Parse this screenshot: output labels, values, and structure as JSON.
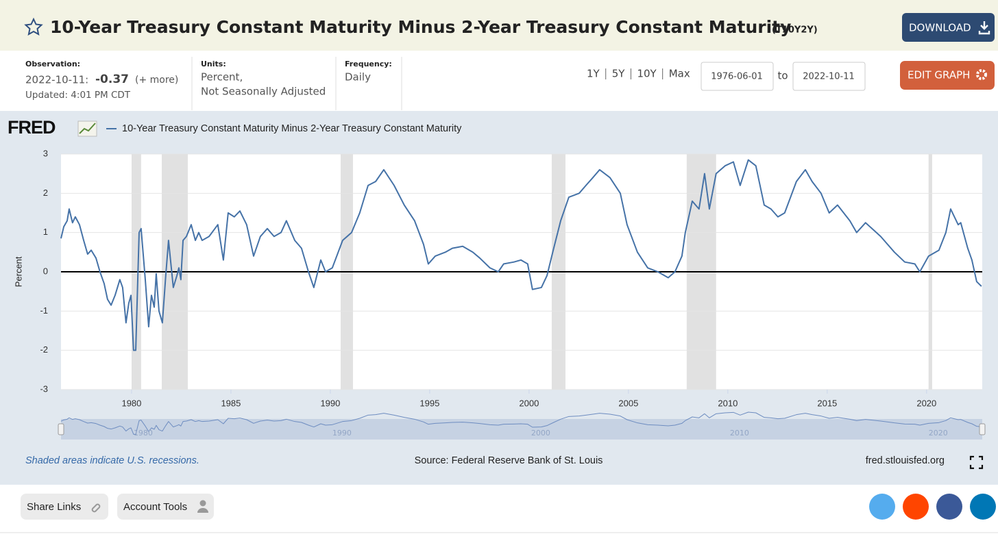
{
  "header": {
    "title": "10-Year Treasury Constant Maturity Minus 2-Year Treasury Constant Maturity",
    "series_id": "(T10Y2Y)",
    "download": "DOWNLOAD"
  },
  "meta": {
    "observation_label": "Observation:",
    "observation_date": "2022-10-11:",
    "observation_value": "-0.37",
    "more": "(+ more)",
    "updated": "Updated: 4:01 PM CDT",
    "units_label": "Units:",
    "units_line1": "Percent,",
    "units_line2": "Not Seasonally Adjusted",
    "frequency_label": "Frequency:",
    "frequency": "Daily"
  },
  "controls": {
    "ranges": [
      "1Y",
      "5Y",
      "10Y",
      "Max"
    ],
    "start": "1976-06-01",
    "to": "to",
    "end": "2022-10-11",
    "edit": "EDIT GRAPH"
  },
  "chart_data": {
    "type": "line",
    "logo": "FRED",
    "y_label": "Percent",
    "xlim": [
      1976.45,
      2022.8
    ],
    "ylim": [
      -3,
      3
    ],
    "xticks": [
      1980,
      1985,
      1990,
      1995,
      2000,
      2005,
      2010,
      2015,
      2020
    ],
    "yticks": [
      -3,
      -2,
      -1,
      0,
      1,
      2,
      3
    ],
    "grid": true,
    "zero_line": true,
    "recession_color": "#e1e1e1",
    "recessions": [
      [
        1980.0,
        1980.48
      ],
      [
        1981.52,
        1982.83
      ],
      [
        1990.52,
        1991.14
      ],
      [
        2001.14,
        2001.83
      ],
      [
        2007.93,
        2009.41
      ],
      [
        2020.1,
        2020.28
      ]
    ],
    "navigator_ticks": [
      1980,
      1990,
      2000,
      2010,
      2020
    ],
    "x": [
      1976.45,
      1976.59,
      1976.76,
      1976.86,
      1977.03,
      1977.17,
      1977.38,
      1977.59,
      1977.79,
      1977.97,
      1978.21,
      1978.41,
      1978.62,
      1978.79,
      1978.97,
      1979.17,
      1979.41,
      1979.55,
      1979.72,
      1979.86,
      1979.97,
      1980.1,
      1980.21,
      1980.38,
      1980.48,
      1980.69,
      1980.86,
      1981.0,
      1981.14,
      1981.24,
      1981.38,
      1981.55,
      1981.72,
      1981.86,
      1982.0,
      1982.1,
      1982.28,
      1982.38,
      1982.48,
      1982.59,
      1982.76,
      1983.0,
      1983.21,
      1983.38,
      1983.55,
      1983.9,
      1984.34,
      1984.62,
      1984.86,
      1985.17,
      1985.45,
      1985.79,
      1986.14,
      1986.48,
      1986.83,
      1987.17,
      1987.52,
      1987.79,
      1988.21,
      1988.55,
      1988.9,
      1989.17,
      1989.52,
      1989.76,
      1990.1,
      1990.62,
      1991.07,
      1991.48,
      1991.9,
      1992.28,
      1992.69,
      1993.21,
      1993.72,
      1994.24,
      1994.69,
      1994.93,
      1995.28,
      1995.79,
      1996.14,
      1996.66,
      1997.17,
      1997.52,
      1998.03,
      1998.45,
      1998.72,
      1999.24,
      1999.59,
      1999.93,
      2000.17,
      2000.62,
      2000.9,
      2001.24,
      2001.59,
      2002.0,
      2002.52,
      2002.86,
      2003.21,
      2003.55,
      2004.07,
      2004.59,
      2004.93,
      2005.45,
      2005.97,
      2006.48,
      2007.0,
      2007.34,
      2007.69,
      2007.86,
      2008.21,
      2008.55,
      2008.83,
      2009.07,
      2009.41,
      2009.86,
      2010.28,
      2010.62,
      2011.03,
      2011.41,
      2011.83,
      2012.17,
      2012.52,
      2012.86,
      2013.45,
      2013.9,
      2014.24,
      2014.69,
      2015.1,
      2015.52,
      2016.14,
      2016.48,
      2016.93,
      2017.69,
      2018.38,
      2018.9,
      2019.41,
      2019.66,
      2020.1,
      2020.62,
      2020.97,
      2021.21,
      2021.59,
      2021.72,
      2022.07,
      2022.28,
      2022.52,
      2022.76
    ],
    "series": [
      {
        "name": "10-Year Treasury Constant Maturity Minus 2-Year Treasury Constant Maturity",
        "color": "#4572a7",
        "values": [
          0.85,
          1.15,
          1.3,
          1.6,
          1.25,
          1.4,
          1.2,
          0.8,
          0.45,
          0.55,
          0.35,
          0.0,
          -0.3,
          -0.7,
          -0.85,
          -0.6,
          -0.2,
          -0.4,
          -1.3,
          -0.8,
          -0.6,
          -2.0,
          -2.0,
          1.0,
          1.1,
          -0.2,
          -1.4,
          -0.6,
          -0.9,
          -0.05,
          -1.0,
          -1.3,
          -0.1,
          0.8,
          0.1,
          -0.4,
          -0.1,
          0.1,
          -0.2,
          0.8,
          0.9,
          1.2,
          0.8,
          1.0,
          0.8,
          0.9,
          1.2,
          0.3,
          1.5,
          1.4,
          1.55,
          1.2,
          0.4,
          0.9,
          1.1,
          0.9,
          1.0,
          1.3,
          0.8,
          0.6,
          0.0,
          -0.4,
          0.3,
          0.0,
          0.1,
          0.8,
          1.0,
          1.5,
          2.2,
          2.3,
          2.6,
          2.2,
          1.7,
          1.3,
          0.7,
          0.2,
          0.4,
          0.5,
          0.6,
          0.65,
          0.5,
          0.35,
          0.1,
          0.0,
          0.2,
          0.25,
          0.3,
          0.2,
          -0.45,
          -0.4,
          -0.1,
          0.6,
          1.3,
          1.9,
          2.0,
          2.2,
          2.4,
          2.6,
          2.4,
          2.0,
          1.2,
          0.5,
          0.1,
          0.0,
          -0.15,
          0.0,
          0.4,
          1.0,
          1.8,
          1.6,
          2.5,
          1.6,
          2.5,
          2.7,
          2.8,
          2.2,
          2.85,
          2.7,
          1.7,
          1.6,
          1.4,
          1.5,
          2.3,
          2.6,
          2.3,
          2.0,
          1.5,
          1.7,
          1.3,
          1.0,
          1.25,
          0.9,
          0.5,
          0.25,
          0.2,
          0.0,
          0.4,
          0.55,
          1.0,
          1.6,
          1.2,
          1.25,
          0.6,
          0.3,
          -0.25,
          -0.37
        ]
      }
    ]
  },
  "footer": {
    "note": "Shaded areas indicate U.S. recessions.",
    "source": "Source: Federal Reserve Bank of St. Louis",
    "site": "fred.stlouisfed.org"
  },
  "bottom": {
    "share": "Share Links",
    "account": "Account Tools"
  }
}
